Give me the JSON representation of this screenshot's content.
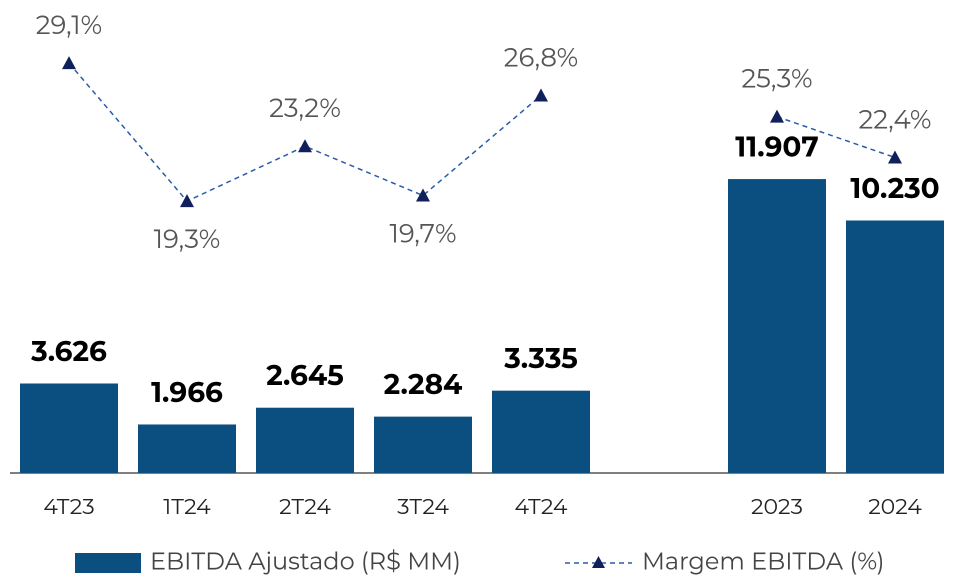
{
  "chart_data": {
    "type": "bar",
    "categories": [
      "4T23",
      "1T24",
      "2T24",
      "3T24",
      "4T24",
      null,
      "2023",
      "2024"
    ],
    "series": [
      {
        "name": "EBITDA Ajustado (R$ MM)",
        "type": "bar",
        "color": "#0b4f80",
        "values": [
          3626,
          1966,
          2645,
          2284,
          3335,
          null,
          11907,
          10230
        ],
        "value_labels": [
          "3.626",
          "1.966",
          "2.645",
          "2.284",
          "3.335",
          null,
          "11.907",
          "10.230"
        ]
      },
      {
        "name": "Margem EBITDA (%)",
        "type": "line",
        "axis": "y2",
        "color": "#10205a",
        "values": [
          29.1,
          19.3,
          23.2,
          19.7,
          26.8,
          null,
          25.3,
          22.4
        ],
        "value_labels": [
          "29,1%",
          "19,3%",
          "23,2%",
          "19,7%",
          "26,8%",
          null,
          "25,3%",
          "22,4%"
        ]
      }
    ],
    "ylim": [
      0,
      19000
    ],
    "y2lim": [
      0,
      33.3
    ]
  }
}
